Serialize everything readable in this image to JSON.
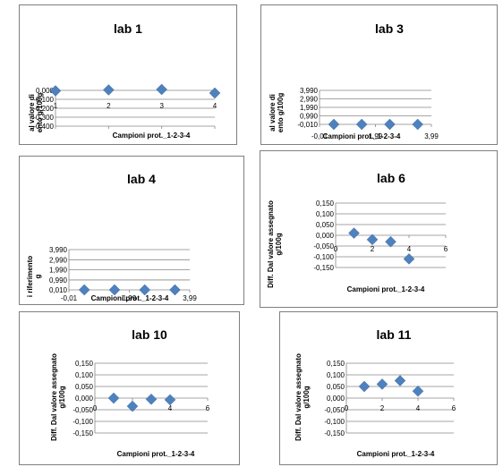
{
  "charts": [
    {
      "chart_data": {
        "type": "scatter",
        "title": "lab 1",
        "xlabel": "Campioni prot._1-2-3-4",
        "ylabel": "al valore di\nento g/100g",
        "x": [
          1,
          2,
          3,
          4
        ],
        "y": [
          -0.005,
          0.005,
          0.01,
          -0.03
        ],
        "xlim": [
          1,
          4
        ],
        "xticks": [
          "1",
          "2",
          "3",
          "4"
        ],
        "xtick_values": [
          1,
          2,
          3,
          4
        ],
        "ylim": [
          -0.4,
          0.0
        ],
        "yticks": [
          "0,000",
          "-0,100",
          "-0,200",
          "-0,300",
          "-0,400"
        ],
        "ytick_values": [
          0,
          -0.1,
          -0.2,
          -0.3,
          -0.4
        ],
        "grid": true,
        "color": "#4f81bd"
      }
    },
    {
      "chart_data": {
        "type": "scatter",
        "title": "lab 3",
        "xlabel": "Campioni prot._1-2-3-4",
        "ylabel": "al valore di\nento g/100g",
        "x": [
          0.5,
          1.5,
          2.5,
          3.5
        ],
        "y": [
          -0.01,
          -0.01,
          -0.01,
          -0.01
        ],
        "xlim": [
          -0.01,
          3.99
        ],
        "xticks": [
          "-0,01",
          "1,99",
          "3,99"
        ],
        "xtick_values": [
          -0.01,
          1.99,
          3.99
        ],
        "ylim": [
          -0.01,
          3.99
        ],
        "yticks": [
          "3,990",
          "2,990",
          "1,990",
          "0,990",
          "-0,010"
        ],
        "ytick_values": [
          3.99,
          2.99,
          1.99,
          0.99,
          -0.01
        ],
        "grid": true,
        "color": "#4f81bd"
      }
    },
    {
      "chart_data": {
        "type": "scatter",
        "title": "lab 4",
        "xlabel": "Campioni prot._1-2-3-4",
        "ylabel": "i riferimento\ng",
        "x": [
          0.5,
          1.5,
          2.5,
          3.5
        ],
        "y": [
          0.01,
          0.01,
          0.01,
          0.01
        ],
        "xlim": [
          -0.01,
          3.99
        ],
        "xticks": [
          "-0,01",
          "1,99",
          "3,99"
        ],
        "xtick_values": [
          -0.01,
          1.99,
          3.99
        ],
        "ylim": [
          0.01,
          3.99
        ],
        "yticks": [
          "3,990",
          "2,990",
          "1,990",
          "0,990",
          "0,010"
        ],
        "ytick_values": [
          3.99,
          2.99,
          1.99,
          0.99,
          0.01
        ],
        "grid": true,
        "color": "#4f81bd"
      }
    },
    {
      "chart_data": {
        "type": "scatter",
        "title": "lab 6",
        "xlabel": "Campioni prot._1-2-3-4",
        "ylabel": "Diff. Dal valore assegnato\ng/100g",
        "x": [
          1,
          2,
          3,
          4
        ],
        "y": [
          0.01,
          -0.02,
          -0.03,
          -0.11
        ],
        "xlim": [
          0,
          6
        ],
        "xticks": [
          "0",
          "2",
          "4",
          "6"
        ],
        "xtick_values": [
          0,
          2,
          4,
          6
        ],
        "ylim": [
          -0.15,
          0.15
        ],
        "yticks": [
          "0,150",
          "0,100",
          "0,050",
          "0,000",
          "-0,050",
          "-0,100",
          "-0,150"
        ],
        "ytick_values": [
          0.15,
          0.1,
          0.05,
          0,
          -0.05,
          -0.1,
          -0.15
        ],
        "grid": true,
        "color": "#4f81bd"
      }
    },
    {
      "chart_data": {
        "type": "scatter",
        "title": "lab 10",
        "xlabel": "Campioni prot._1-2-3-4",
        "ylabel": "Diff. Dal valore assegnato\ng/100g",
        "x": [
          1,
          2,
          3,
          4
        ],
        "y": [
          0.0,
          -0.035,
          -0.005,
          -0.007
        ],
        "xlim": [
          0,
          6
        ],
        "xticks": [
          "0",
          "2",
          "4",
          "6"
        ],
        "xtick_values": [
          0,
          2,
          4,
          6
        ],
        "ylim": [
          -0.15,
          0.15
        ],
        "yticks": [
          "0,150",
          "0,100",
          "0,050",
          "0,000",
          "-0,050",
          "-0,100",
          "-0,150"
        ],
        "ytick_values": [
          0.15,
          0.1,
          0.05,
          0,
          -0.05,
          -0.1,
          -0.15
        ],
        "grid": true,
        "color": "#4f81bd"
      }
    },
    {
      "chart_data": {
        "type": "scatter",
        "title": "lab 11",
        "xlabel": "Campioni prot._1-2-3-4",
        "ylabel": "Diff. Dal valore assegnato\ng/100g",
        "x": [
          1,
          2,
          3,
          4
        ],
        "y": [
          0.05,
          0.06,
          0.075,
          0.03
        ],
        "xlim": [
          0,
          6
        ],
        "xticks": [
          "0",
          "2",
          "4",
          "6"
        ],
        "xtick_values": [
          0,
          2,
          4,
          6
        ],
        "ylim": [
          -0.15,
          0.15
        ],
        "yticks": [
          "0,150",
          "0,100",
          "0,050",
          "0,000",
          "-0,050",
          "-0,100",
          "-0,150"
        ],
        "ytick_values": [
          0.15,
          0.1,
          0.05,
          0,
          -0.05,
          -0.1,
          -0.15
        ],
        "grid": true,
        "color": "#4f81bd"
      }
    }
  ]
}
